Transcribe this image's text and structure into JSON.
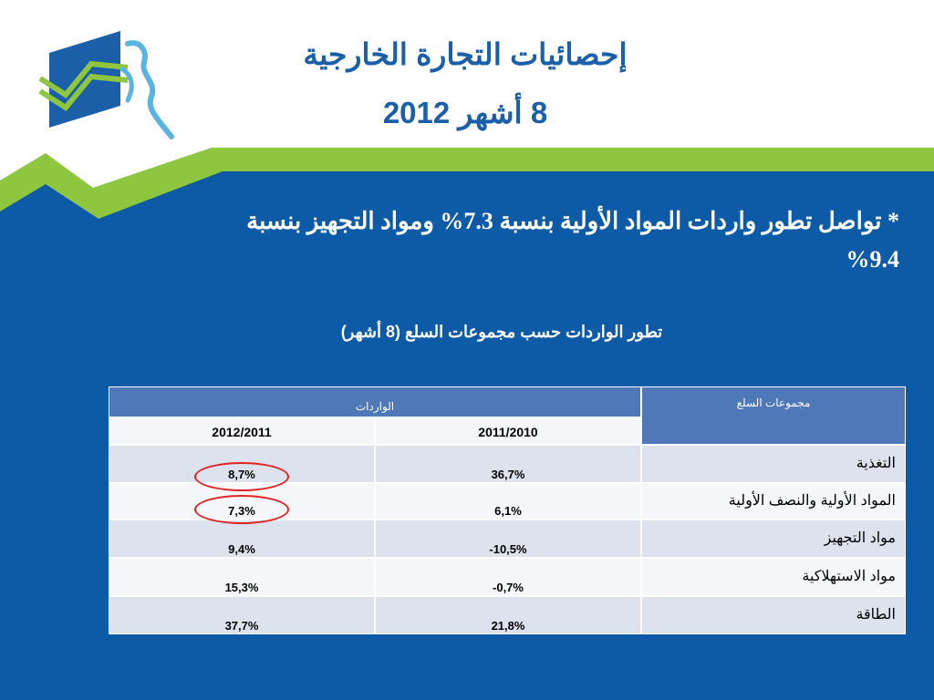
{
  "header": {
    "title_line1": "إحصائيات التجارة الخارجية",
    "title_line2": "8 أشهر 2012"
  },
  "body": {
    "bullet": "* تواصل تطور واردات المواد الأولية بنسبة 7.3% ومواد التجهيز بنسبة 9.4%",
    "subtitle": "تطور الواردات  حسب مجموعات السلع (8 أشهر)"
  },
  "table": {
    "group_header": "مجموعات السلع",
    "imports_header": "الواردات",
    "period_1": "2012/2011",
    "period_2": "2011/2010",
    "rows": [
      {
        "label": "التغذية",
        "p1": "8,7%",
        "p2": "36,7%"
      },
      {
        "label": "المواد الأولية والنصف الأولية",
        "p1": "7,3%",
        "p2": "6,1%"
      },
      {
        "label": "مواد التجهيز",
        "p1": "9,4%",
        "p2": "-10,5%"
      },
      {
        "label": "مواد الاستهلاكية",
        "p1": "15,3%",
        "p2": "-0,7%"
      },
      {
        "label": "الطاقة",
        "p1": "37,7%",
        "p2": "21,8%"
      }
    ],
    "highlighted_rows": [
      0,
      1
    ]
  },
  "colors": {
    "background_blue": "#0d5ba6",
    "accent_green": "#8ec63f",
    "title_blue": "#1a5fa8",
    "header_blue": "#4e78b8",
    "row_light": "#dde3ee",
    "row_white": "#f6f7fa",
    "highlight_red": "#e02424"
  }
}
